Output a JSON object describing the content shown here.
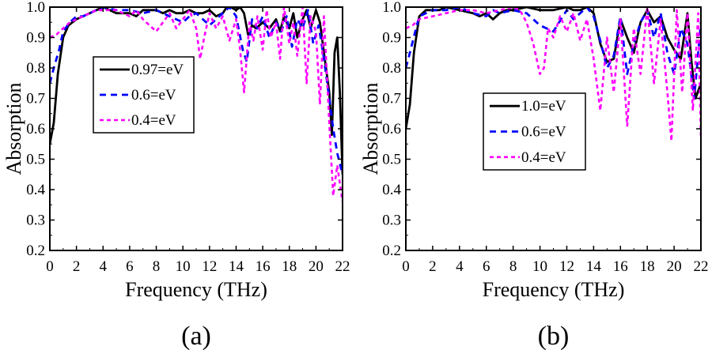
{
  "chart_data": [
    {
      "type": "line",
      "panel_label": "(a)",
      "xlabel": "Frequency (THz)",
      "ylabel": "Absorption",
      "xlim": [
        0,
        22
      ],
      "ylim": [
        0.2,
        1.0
      ],
      "xticks": [
        0,
        2,
        4,
        6,
        8,
        10,
        12,
        14,
        16,
        18,
        20,
        22
      ],
      "yticks": [
        0.2,
        0.3,
        0.4,
        0.5,
        0.6,
        0.7,
        0.8,
        0.9,
        1.0
      ],
      "legend_position": "middle-left",
      "series": [
        {
          "name": "0.97=eV",
          "color": "#000000",
          "dash": "solid",
          "width": 2.8,
          "x": [
            0,
            0.3,
            0.6,
            1,
            1.4,
            2,
            2.5,
            3,
            3.5,
            4,
            4.5,
            5,
            5.5,
            6,
            6.5,
            7,
            7.5,
            8,
            8.5,
            9,
            9.5,
            10,
            10.5,
            11,
            11.5,
            12,
            12.5,
            13,
            13.3,
            13.6,
            14,
            14.3,
            14.6,
            14.9,
            15.2,
            15.5,
            16,
            16.5,
            17,
            17.3,
            17.6,
            18,
            18.3,
            18.6,
            19,
            19.3,
            19.6,
            20,
            20.3,
            20.6,
            21,
            21.2,
            21.4,
            21.6,
            21.8,
            22
          ],
          "y": [
            0.55,
            0.62,
            0.78,
            0.9,
            0.94,
            0.96,
            0.97,
            0.98,
            0.99,
            1.0,
            0.99,
            0.98,
            0.98,
            0.98,
            0.97,
            0.99,
            0.99,
            0.99,
            0.98,
            0.99,
            0.98,
            0.98,
            0.99,
            0.98,
            0.98,
            0.99,
            0.97,
            0.98,
            1.0,
            1.0,
            0.99,
            1.0,
            0.98,
            0.91,
            0.94,
            0.93,
            0.95,
            0.93,
            0.96,
            0.92,
            0.97,
            0.93,
            0.98,
            0.9,
            0.96,
            0.99,
            0.93,
            0.99,
            0.95,
            0.85,
            0.72,
            0.58,
            0.85,
            0.9,
            0.72,
            0.45
          ]
        },
        {
          "name": "0.6=eV",
          "color": "#0000ff",
          "dash": "8,6",
          "width": 2.8,
          "x": [
            0,
            0.3,
            0.7,
            1,
            1.5,
            2,
            2.5,
            3,
            3.5,
            4,
            5,
            6,
            7,
            8,
            8.5,
            9,
            10,
            10.5,
            11,
            11.5,
            12,
            12.5,
            13,
            13.5,
            14,
            14.5,
            14.8,
            15.2,
            15.6,
            16,
            16.5,
            17,
            17.4,
            17.8,
            18.2,
            18.6,
            19,
            19.4,
            19.8,
            20.2,
            20.6,
            21,
            21.3,
            21.6,
            22
          ],
          "y": [
            0.75,
            0.8,
            0.86,
            0.92,
            0.95,
            0.97,
            0.97,
            0.98,
            0.99,
            1.0,
            0.99,
            0.99,
            0.98,
            0.99,
            0.98,
            0.97,
            0.95,
            0.97,
            0.98,
            0.96,
            0.94,
            0.96,
            0.98,
            1.0,
            0.97,
            0.86,
            0.82,
            0.96,
            0.93,
            0.97,
            0.9,
            0.95,
            0.92,
            0.97,
            0.87,
            0.96,
            0.93,
            0.99,
            0.88,
            0.94,
            0.83,
            0.7,
            0.6,
            0.52,
            0.45
          ]
        },
        {
          "name": "0.4=eV",
          "color": "#ff00ff",
          "dash": "5,4",
          "width": 2.6,
          "x": [
            0,
            0.5,
            1,
            1.5,
            2,
            2.5,
            3,
            3.5,
            4,
            5,
            6,
            6.5,
            7,
            7.5,
            8,
            8.5,
            9,
            9.5,
            10,
            10.5,
            11,
            11.3,
            11.6,
            12,
            12.5,
            13,
            13.5,
            14,
            14.3,
            14.6,
            15,
            15.3,
            15.6,
            16,
            16.3,
            16.6,
            17,
            17.3,
            17.6,
            18,
            18.3,
            18.6,
            19,
            19.3,
            19.6,
            20,
            20.3,
            20.6,
            21,
            21.3,
            21.6,
            22
          ],
          "y": [
            0.9,
            0.91,
            0.93,
            0.95,
            0.96,
            0.97,
            0.98,
            0.99,
            0.99,
            0.99,
            0.97,
            0.99,
            0.96,
            0.94,
            0.92,
            0.95,
            0.98,
            0.93,
            0.96,
            0.99,
            0.93,
            0.83,
            0.9,
            0.98,
            0.93,
            0.97,
            0.89,
            0.96,
            0.86,
            0.72,
            0.95,
            0.89,
            0.97,
            0.86,
            0.99,
            0.9,
            0.95,
            0.83,
            1.0,
            0.88,
            0.95,
            0.84,
            1.0,
            0.75,
            0.97,
            0.92,
            0.68,
            0.97,
            0.62,
            0.38,
            0.48,
            0.36
          ]
        }
      ]
    },
    {
      "type": "line",
      "panel_label": "(b)",
      "xlabel": "Frequency (THz)",
      "ylabel": "Absorption",
      "xlim": [
        0,
        22
      ],
      "ylim": [
        0.2,
        1.0
      ],
      "xticks": [
        0,
        2,
        4,
        6,
        8,
        10,
        12,
        14,
        16,
        18,
        20,
        22
      ],
      "yticks": [
        0.2,
        0.3,
        0.4,
        0.5,
        0.6,
        0.7,
        0.8,
        0.9,
        1.0
      ],
      "legend_position": "middle-left",
      "series": [
        {
          "name": "1.0=eV",
          "color": "#000000",
          "dash": "solid",
          "width": 2.8,
          "x": [
            0,
            0.3,
            0.6,
            1,
            1.5,
            2,
            2.5,
            3,
            4,
            5,
            5.5,
            6,
            6.5,
            7,
            7.5,
            8,
            9,
            10,
            11,
            12,
            12.5,
            13,
            13.5,
            14,
            14.5,
            15,
            15.5,
            16,
            16.5,
            17,
            17.5,
            18,
            18.5,
            19,
            19.5,
            20,
            20.5,
            21,
            21.3,
            21.6,
            22
          ],
          "y": [
            0.6,
            0.68,
            0.85,
            0.97,
            0.99,
            0.99,
            0.99,
            1.0,
            0.99,
            0.98,
            0.97,
            0.98,
            0.96,
            0.98,
            0.99,
            0.99,
            1.0,
            0.99,
            0.99,
            1.0,
            0.99,
            0.99,
            1.0,
            0.98,
            0.88,
            0.82,
            0.83,
            0.96,
            0.9,
            0.85,
            0.95,
            0.99,
            0.95,
            0.97,
            0.9,
            0.86,
            0.83,
            0.98,
            0.82,
            0.7,
            0.75
          ]
        },
        {
          "name": "0.6=eV",
          "color": "#0000ff",
          "dash": "8,6",
          "width": 2.8,
          "x": [
            0,
            0.3,
            0.7,
            1,
            1.5,
            2,
            3,
            4,
            5,
            6,
            6.5,
            7,
            8,
            9,
            9.5,
            10,
            11,
            12,
            12.5,
            13,
            13.5,
            14,
            14.5,
            15,
            15.5,
            16,
            16.5,
            17,
            17.5,
            18,
            18.5,
            19,
            19.5,
            20,
            20.5,
            21,
            21.5,
            22
          ],
          "y": [
            0.8,
            0.85,
            0.92,
            0.97,
            0.98,
            0.99,
            0.99,
            1.0,
            0.98,
            0.97,
            0.99,
            0.98,
            0.99,
            0.98,
            0.96,
            0.94,
            0.92,
            0.99,
            0.96,
            0.98,
            1.0,
            0.97,
            0.89,
            0.8,
            0.84,
            0.97,
            0.78,
            0.88,
            0.95,
            0.99,
            0.9,
            0.98,
            0.85,
            0.78,
            0.93,
            0.88,
            0.7,
            0.95
          ]
        },
        {
          "name": "0.4=eV",
          "color": "#ff00ff",
          "dash": "5,4",
          "width": 2.6,
          "x": [
            0,
            0.5,
            1,
            2,
            3,
            4,
            5,
            6,
            7,
            8,
            8.5,
            9,
            9.5,
            10,
            10.3,
            10.6,
            11,
            11.5,
            12,
            12.5,
            13,
            13.5,
            14,
            14.5,
            15,
            15.5,
            16,
            16.5,
            17,
            17.5,
            18,
            18.5,
            19,
            19.5,
            19.8,
            20.2,
            20.6,
            21,
            21.4,
            21.8,
            22
          ],
          "y": [
            0.93,
            0.94,
            0.96,
            0.97,
            0.98,
            0.99,
            0.99,
            0.98,
            0.99,
            1.0,
            0.99,
            0.95,
            0.88,
            0.78,
            0.8,
            0.93,
            0.9,
            0.97,
            0.92,
            0.98,
            0.89,
            0.96,
            0.83,
            0.66,
            0.9,
            0.72,
            0.96,
            0.61,
            0.93,
            0.78,
            1.0,
            0.75,
            0.96,
            0.72,
            0.56,
            0.99,
            0.72,
            0.98,
            0.66,
            0.98,
            0.57
          ]
        }
      ]
    }
  ]
}
